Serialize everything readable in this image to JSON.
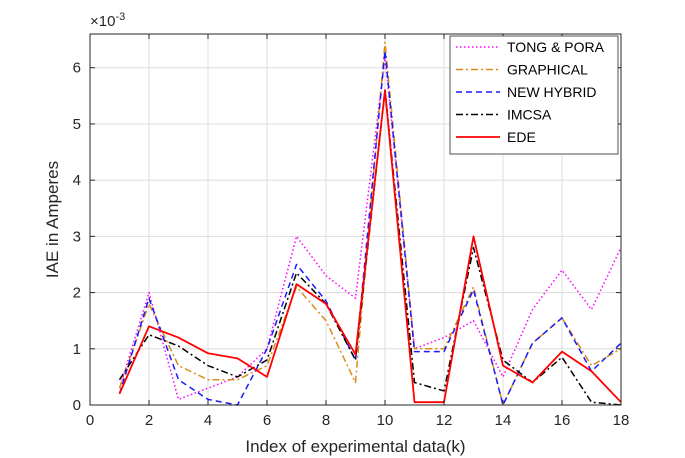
{
  "chart_data": {
    "type": "line",
    "title": "",
    "xlabel": "Index of experimental data(k)",
    "ylabel": "IAE in Amperes",
    "y_exponent_label": "×10",
    "y_exponent_power": "-3",
    "xlim": [
      0,
      18
    ],
    "ylim": [
      0,
      6.6
    ],
    "xticks": [
      0,
      2,
      4,
      6,
      8,
      10,
      12,
      14,
      16,
      18
    ],
    "yticks": [
      0,
      1,
      2,
      3,
      4,
      5,
      6
    ],
    "grid": true,
    "legend_position": "top-right",
    "x": [
      1,
      2,
      3,
      4,
      5,
      6,
      7,
      8,
      9,
      10,
      11,
      12,
      13,
      14,
      15,
      16,
      17,
      18
    ],
    "series": [
      {
        "name": "TONG & PORA",
        "color": "#ff00ff",
        "dash": "dotted",
        "values": [
          0.3,
          2.0,
          0.1,
          0.3,
          0.5,
          1.0,
          3.0,
          2.3,
          1.9,
          6.2,
          1.0,
          1.2,
          1.5,
          0.5,
          1.7,
          2.4,
          1.7,
          2.8
        ]
      },
      {
        "name": "GRAPHICAL",
        "color": "#d98c1a",
        "dash": "dashdot",
        "values": [
          0.3,
          1.8,
          0.7,
          0.45,
          0.45,
          0.7,
          2.1,
          1.5,
          0.4,
          6.45,
          1.0,
          1.0,
          2.1,
          0.0,
          1.1,
          1.55,
          0.7,
          1.0
        ]
      },
      {
        "name": "NEW HYBRID",
        "color": "#1a1aff",
        "dash": "dashed",
        "values": [
          0.2,
          1.9,
          0.45,
          0.1,
          0.0,
          1.0,
          2.5,
          1.85,
          0.8,
          6.3,
          0.95,
          0.95,
          2.05,
          0.0,
          1.1,
          1.55,
          0.6,
          1.1
        ]
      },
      {
        "name": "IMCSA",
        "color": "#000000",
        "dash": "dashdot",
        "values": [
          0.45,
          1.25,
          1.05,
          0.7,
          0.5,
          0.8,
          2.35,
          1.8,
          0.8,
          5.6,
          0.4,
          0.25,
          2.8,
          0.8,
          0.4,
          0.85,
          0.05,
          0.0
        ]
      },
      {
        "name": "EDE",
        "color": "#ff0000",
        "dash": "solid",
        "values": [
          0.2,
          1.4,
          1.2,
          0.92,
          0.83,
          0.5,
          2.15,
          1.8,
          0.9,
          5.6,
          0.05,
          0.05,
          3.0,
          0.7,
          0.4,
          0.95,
          0.6,
          0.05
        ]
      }
    ]
  }
}
